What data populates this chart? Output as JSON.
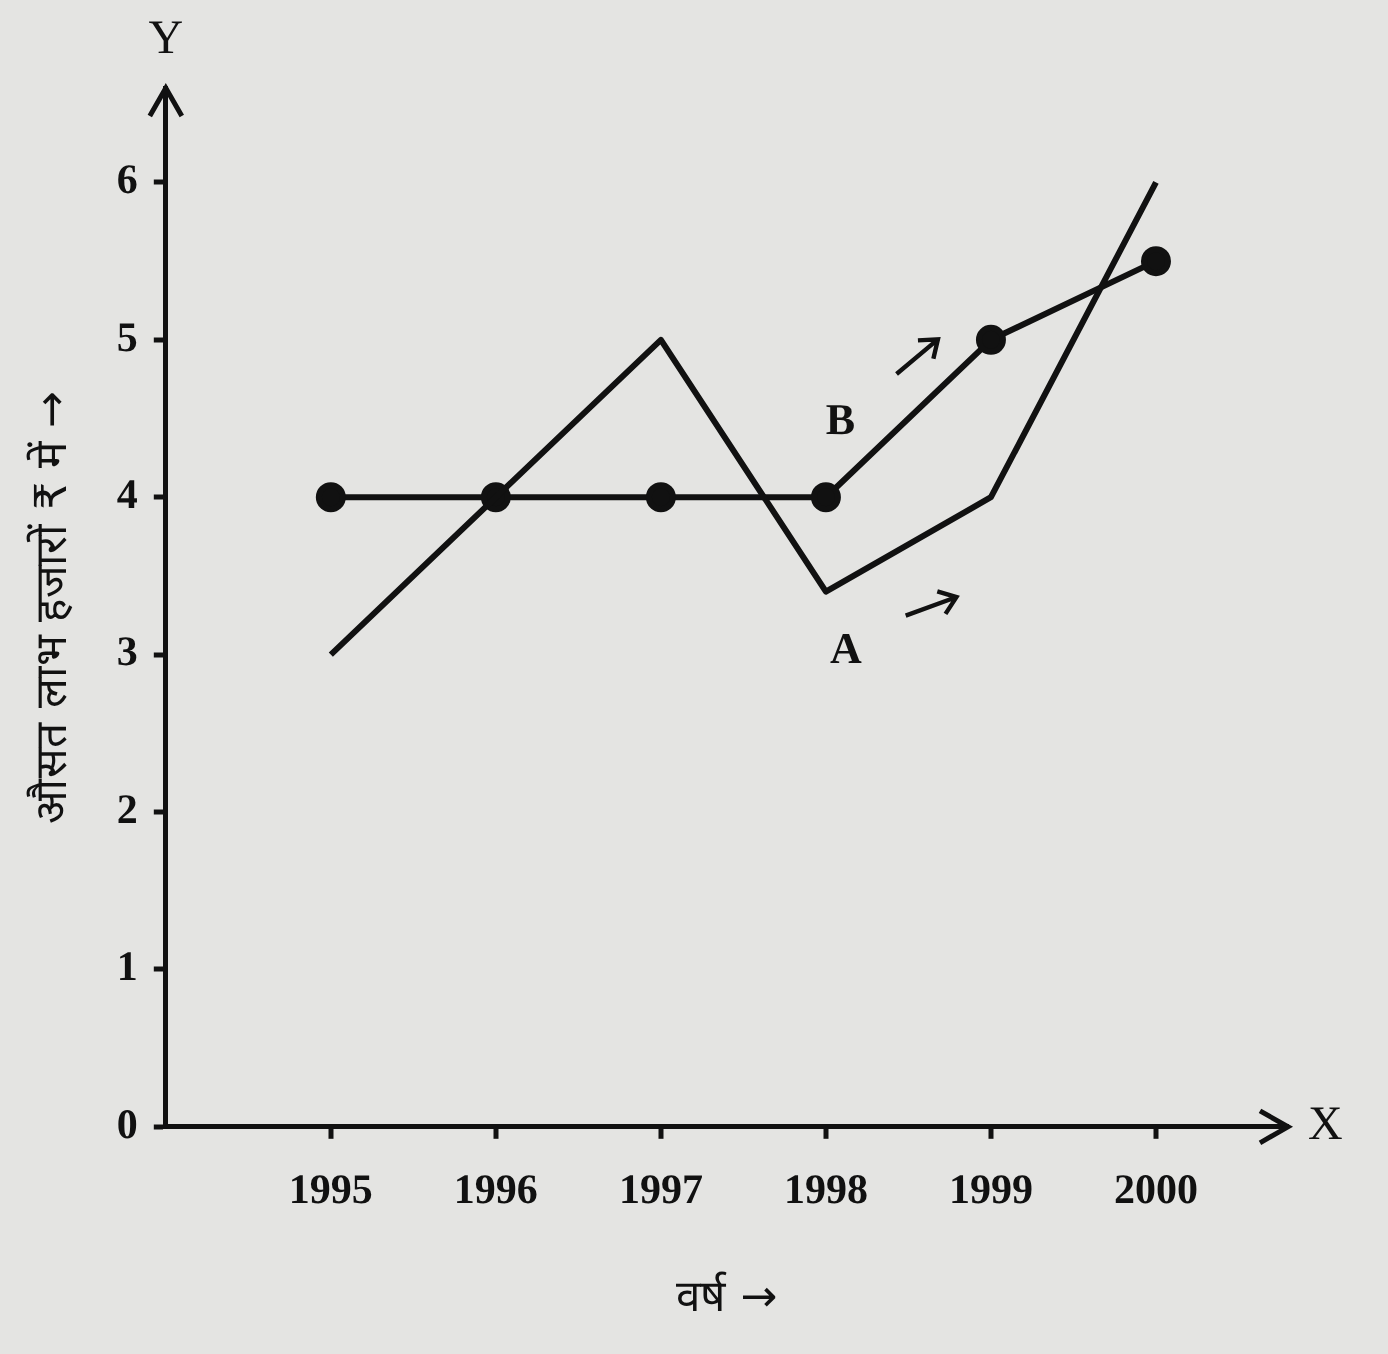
{
  "chart_data": {
    "type": "line",
    "xlabel": "वर्ष →",
    "ylabel": "औसत लाभ हजारों ₹ में →",
    "x": [
      1995,
      1996,
      1997,
      1998,
      1999,
      2000
    ],
    "series": [
      {
        "name": "A",
        "color": "#111111",
        "values": [
          3,
          4,
          5,
          3.4,
          4,
          6
        ],
        "marker": "none"
      },
      {
        "name": "B",
        "color": "#111111",
        "values": [
          4,
          4,
          4,
          4,
          5,
          5.5
        ],
        "marker": "circle"
      }
    ],
    "xlim": [
      1994,
      2000.8
    ],
    "xticks": [
      1995,
      1996,
      1997,
      1998,
      1999,
      2000
    ],
    "ylim": [
      0,
      6.6
    ],
    "yticks": [
      0,
      1,
      2,
      3,
      4,
      5,
      6
    ],
    "annotations": [
      "Y",
      "X"
    ],
    "grid": false,
    "legend": false,
    "line_style": "solid"
  }
}
